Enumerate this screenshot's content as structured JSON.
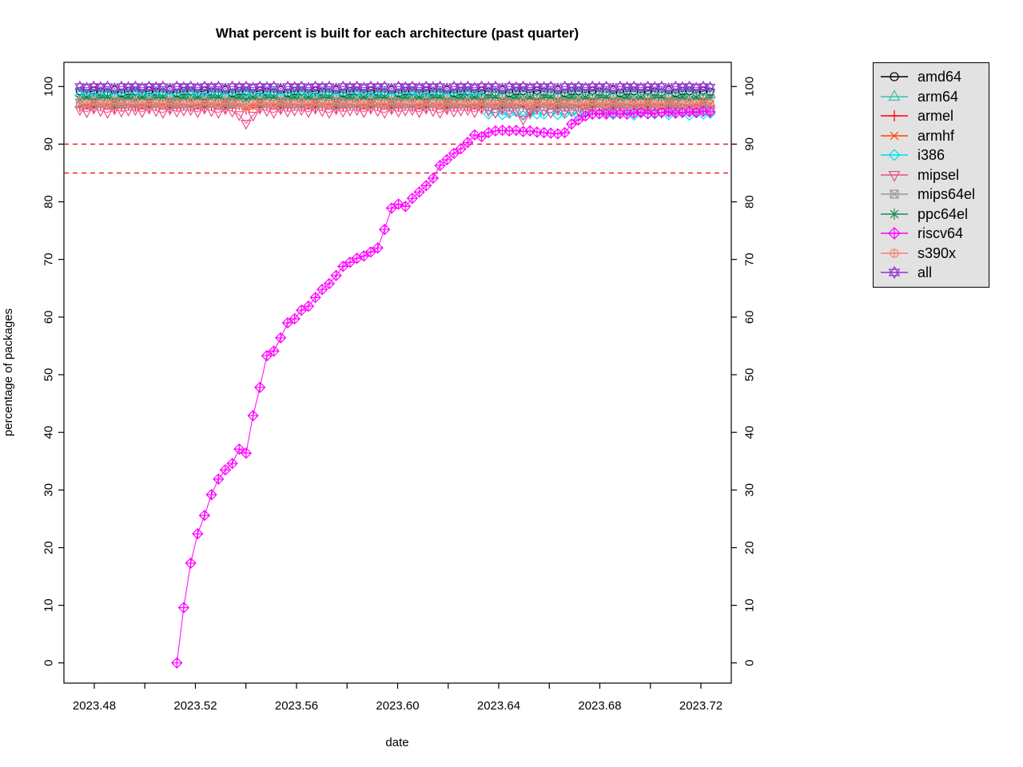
{
  "figure": {
    "background": "#FFFFFF"
  },
  "chart_data": {
    "type": "line",
    "title": "What percent is built for each architecture (past quarter)",
    "xlabel": "date",
    "ylabel": "percentage of packages",
    "xlim": [
      2023.468,
      2023.732
    ],
    "ylim": [
      -3.5,
      104.2
    ],
    "grid": false,
    "legend_position": "right-outside",
    "legend_bg": "#E2E2E2",
    "legend_border": "#000000",
    "axis_color": "#000000",
    "x_ticks": {
      "positions": [
        2023.48,
        2023.5,
        2023.52,
        2023.54,
        2023.56,
        2023.58,
        2023.6,
        2023.62,
        2023.64,
        2023.66,
        2023.68,
        2023.7,
        2023.72
      ],
      "labels": [
        "2023.48",
        "",
        "2023.52",
        "",
        "2023.56",
        "",
        "2023.60",
        "",
        "2023.64",
        "",
        "2023.68",
        "",
        "2023.72"
      ]
    },
    "y_ticks": {
      "positions": [
        0,
        10,
        20,
        30,
        40,
        50,
        60,
        70,
        80,
        90,
        100
      ],
      "labels": [
        "0",
        "10",
        "20",
        "30",
        "40",
        "50",
        "60",
        "70",
        "80",
        "90",
        "100"
      ],
      "mirrored_right": true
    },
    "hlines": [
      {
        "y": 90,
        "color": "#EE0000",
        "style": "dashed"
      },
      {
        "y": 85,
        "color": "#EE0000",
        "style": "dashed"
      }
    ],
    "x": {
      "start": 2023.4743,
      "step": 0.00274,
      "count": 92,
      "unit": "decimal year (daily samples)"
    },
    "series": [
      {
        "name": "amd64",
        "color": "#000000",
        "marker": "circle",
        "values": [
          99.2,
          98.9,
          99.3,
          99.1,
          99.0,
          99.4,
          98.9,
          99.2,
          99.2,
          98.9,
          99.3,
          99.1,
          99.0,
          99.4,
          98.9,
          99.2,
          99.2,
          98.9,
          99.3,
          99.1,
          99.0,
          99.4,
          98.9,
          99.2,
          99.2,
          98.9,
          99.3,
          99.1,
          99.0,
          99.4,
          98.9,
          99.2,
          99.2,
          98.9,
          99.3,
          99.1,
          99.0,
          99.4,
          98.9,
          99.2,
          99.2,
          98.9,
          99.3,
          99.1,
          99.0,
          99.4,
          98.9,
          99.2,
          99.2,
          98.9,
          99.3,
          99.1,
          99.0,
          99.4,
          98.9,
          99.2,
          99.2,
          98.9,
          99.3,
          99.1,
          99.0,
          99.4,
          98.9,
          99.2,
          99.2,
          98.9,
          99.3,
          99.1,
          99.0,
          99.4,
          98.9,
          99.2,
          99.2,
          98.9,
          99.3,
          99.1,
          99.0,
          99.4,
          98.9,
          99.2,
          99.2,
          98.9,
          99.3,
          99.1,
          99.0,
          99.4,
          98.9,
          99.2,
          99.2,
          98.9,
          99.3,
          99.1
        ]
      },
      {
        "name": "arm64",
        "color": "#3CC0B4",
        "marker": "triangle-up",
        "values": [
          98.9,
          98.6,
          98.4,
          98.8,
          99.0,
          98.5,
          98.7,
          98.9,
          98.9,
          98.6,
          98.4,
          98.8,
          99.0,
          98.5,
          98.7,
          98.9,
          98.9,
          98.6,
          98.4,
          98.8,
          99.0,
          98.5,
          98.7,
          98.9,
          98.9,
          98.6,
          98.4,
          98.8,
          99.0,
          98.5,
          98.7,
          98.9,
          98.9,
          98.6,
          98.4,
          98.8,
          99.0,
          98.5,
          98.7,
          98.9,
          98.9,
          98.6,
          98.4,
          98.8,
          99.0,
          98.5,
          98.7,
          98.9,
          98.9,
          98.6,
          98.4,
          98.8,
          99.0,
          98.5,
          98.7,
          98.9,
          98.9,
          98.6,
          98.4,
          98.8,
          99.0,
          98.5,
          98.7,
          98.9,
          98.9,
          98.6,
          98.4,
          98.8,
          99.0,
          98.5,
          98.7,
          98.9,
          98.9,
          98.6,
          98.4,
          98.8,
          99.0,
          98.5,
          98.7,
          98.9,
          98.9,
          98.6,
          98.4,
          98.8,
          99.0,
          98.5,
          98.7,
          98.9,
          98.9,
          98.6,
          98.4,
          98.8
        ]
      },
      {
        "name": "armel",
        "color": "#FF0000",
        "marker": "plus",
        "values": [
          96.5,
          96.8,
          96.4,
          96.7,
          96.9,
          96.3,
          96.6,
          96.8,
          96.5,
          96.8,
          96.4,
          96.7,
          96.9,
          96.3,
          96.6,
          96.8,
          96.5,
          96.8,
          96.4,
          96.7,
          96.9,
          96.3,
          96.6,
          96.8,
          96.0,
          96.8,
          96.4,
          96.7,
          96.9,
          96.3,
          96.6,
          96.8,
          96.5,
          96.8,
          96.4,
          96.7,
          96.9,
          96.3,
          96.6,
          96.8,
          96.5,
          96.8,
          96.4,
          96.7,
          96.9,
          96.3,
          96.6,
          96.8,
          96.5,
          96.8,
          96.4,
          96.7,
          96.9,
          96.3,
          96.6,
          96.8,
          96.5,
          96.8,
          96.4,
          96.7,
          96.9,
          96.3,
          96.6,
          96.8,
          96.5,
          95.2,
          96.4,
          96.7,
          96.9,
          96.3,
          96.6,
          96.8,
          96.5,
          96.8,
          96.4,
          96.7,
          96.9,
          96.3,
          96.6,
          96.8,
          96.5,
          96.8,
          96.4,
          96.7,
          96.9,
          96.3,
          96.6,
          96.8,
          96.5,
          96.8,
          96.4,
          96.7
        ]
      },
      {
        "name": "armhf",
        "color": "#FF4500",
        "marker": "cross",
        "values": [
          96.9,
          96.5,
          97.0,
          96.8,
          96.6,
          97.1,
          96.7,
          96.9,
          96.9,
          96.5,
          97.0,
          96.8,
          96.6,
          97.1,
          96.7,
          96.9,
          96.9,
          96.5,
          97.0,
          96.8,
          96.6,
          97.1,
          96.7,
          96.9,
          96.2,
          96.5,
          97.0,
          96.8,
          96.6,
          97.1,
          96.7,
          96.9,
          96.9,
          96.5,
          97.0,
          96.8,
          96.6,
          97.1,
          96.7,
          96.9,
          96.9,
          96.5,
          97.0,
          96.8,
          96.6,
          97.1,
          96.7,
          96.9,
          96.9,
          96.5,
          97.0,
          96.8,
          96.6,
          97.1,
          96.7,
          96.9,
          96.9,
          96.5,
          97.0,
          96.8,
          96.6,
          97.1,
          96.7,
          96.9,
          96.9,
          96.5,
          97.0,
          96.8,
          96.6,
          97.1,
          96.7,
          96.9,
          96.9,
          96.5,
          97.0,
          96.8,
          96.6,
          97.1,
          96.7,
          96.9,
          96.9,
          96.5,
          97.0,
          96.8,
          96.6,
          97.1,
          96.7,
          96.9,
          96.9,
          96.5,
          97.0,
          96.8
        ]
      },
      {
        "name": "i386",
        "color": "#00DDEE",
        "marker": "diamond",
        "values": [
          98.5,
          98.7,
          98.2,
          98.4,
          98.6,
          98.1,
          98.5,
          98.3,
          98.5,
          98.7,
          98.2,
          98.4,
          98.6,
          98.1,
          98.5,
          98.3,
          98.5,
          98.7,
          98.2,
          98.4,
          98.6,
          98.1,
          98.5,
          98.3,
          98.5,
          98.7,
          98.2,
          98.4,
          98.6,
          98.1,
          98.5,
          98.3,
          98.5,
          98.7,
          98.2,
          98.4,
          98.6,
          98.1,
          98.5,
          98.3,
          98.5,
          98.7,
          98.2,
          98.4,
          98.6,
          98.1,
          98.5,
          98.3,
          98.5,
          98.7,
          98.2,
          98.4,
          98.6,
          98.1,
          98.5,
          98.3,
          98.5,
          98.7,
          98.2,
          95.2,
          95.5,
          95.1,
          95.3,
          95.6,
          95.0,
          95.4,
          95.2,
          95.2,
          95.5,
          95.1,
          95.3,
          95.6,
          95.0,
          95.4,
          95.2,
          95.2,
          95.5,
          95.1,
          95.3,
          95.6,
          95.0,
          95.4,
          95.2,
          95.2,
          95.5,
          95.1,
          95.3,
          95.6,
          95.0,
          95.4,
          95.2,
          95.3
        ]
      },
      {
        "name": "mipsel",
        "color": "#EE4C8E",
        "marker": "triangle-down",
        "values": [
          96.0,
          95.6,
          96.2,
          95.8,
          95.5,
          96.1,
          95.7,
          95.9,
          96.0,
          95.6,
          96.2,
          95.8,
          95.5,
          96.1,
          95.7,
          95.9,
          96.0,
          95.6,
          96.2,
          95.8,
          95.5,
          96.1,
          95.7,
          95.1,
          93.6,
          95.0,
          96.2,
          95.8,
          95.5,
          96.1,
          95.7,
          95.9,
          96.0,
          95.6,
          96.2,
          95.8,
          95.5,
          96.1,
          95.7,
          95.9,
          96.0,
          95.6,
          96.2,
          95.8,
          95.5,
          96.1,
          95.7,
          95.9,
          96.0,
          95.6,
          96.2,
          95.8,
          95.5,
          96.1,
          95.7,
          95.9,
          96.0,
          95.6,
          96.2,
          95.8,
          95.5,
          96.1,
          95.7,
          95.9,
          94.3,
          95.6,
          96.2,
          95.8,
          95.5,
          96.1,
          95.7,
          95.9,
          96.0,
          95.6,
          96.2,
          95.8,
          95.5,
          96.1,
          95.7,
          95.9,
          96.0,
          95.6,
          96.2,
          95.8,
          95.5,
          96.1,
          95.7,
          95.9,
          96.0,
          95.6,
          96.2,
          95.8
        ]
      },
      {
        "name": "mips64el",
        "color": "#A09598",
        "marker": "square-cross",
        "values": [
          96.9,
          97.2,
          96.8,
          97.0,
          97.3,
          96.7,
          97.1,
          96.9,
          96.9,
          97.2,
          96.8,
          97.0,
          97.3,
          96.7,
          97.1,
          96.9,
          96.9,
          97.2,
          96.8,
          97.0,
          97.3,
          96.7,
          97.1,
          96.9,
          96.9,
          97.2,
          96.8,
          97.0,
          97.3,
          96.7,
          97.1,
          96.9,
          96.9,
          97.2,
          96.8,
          97.0,
          97.3,
          96.7,
          97.1,
          96.9,
          96.9,
          97.2,
          96.8,
          97.0,
          97.3,
          96.7,
          97.1,
          96.9,
          96.9,
          97.2,
          96.8,
          97.0,
          97.3,
          96.7,
          97.1,
          96.9,
          96.9,
          97.2,
          96.8,
          97.0,
          97.3,
          96.7,
          97.1,
          96.9,
          96.9,
          97.2,
          96.8,
          97.0,
          97.3,
          96.7,
          97.1,
          96.9,
          96.9,
          97.2,
          96.8,
          97.0,
          97.3,
          96.7,
          97.1,
          96.9,
          96.9,
          97.2,
          96.8,
          97.0,
          97.3,
          96.7,
          97.1,
          96.9,
          96.9,
          97.2,
          96.8,
          97.0
        ]
      },
      {
        "name": "ppc64el",
        "color": "#228B50",
        "marker": "asterisk",
        "values": [
          97.8,
          98.1,
          97.7,
          98.0,
          98.2,
          97.6,
          97.9,
          98.1,
          97.8,
          98.1,
          97.7,
          98.0,
          98.2,
          97.6,
          97.9,
          98.1,
          97.8,
          98.1,
          97.7,
          98.0,
          98.2,
          97.6,
          97.9,
          98.1,
          97.8,
          98.1,
          97.7,
          98.0,
          98.2,
          97.6,
          97.9,
          98.1,
          97.8,
          98.1,
          97.7,
          98.0,
          98.2,
          97.6,
          97.9,
          98.1,
          97.8,
          98.1,
          97.7,
          98.0,
          98.2,
          97.6,
          97.9,
          98.1,
          97.8,
          98.1,
          97.7,
          98.0,
          98.2,
          97.6,
          97.9,
          98.1,
          97.8,
          98.1,
          97.7,
          98.0,
          98.2,
          97.6,
          97.9,
          98.1,
          97.8,
          98.1,
          97.7,
          98.0,
          98.2,
          97.6,
          97.9,
          98.1,
          97.8,
          98.1,
          97.7,
          98.0,
          98.2,
          97.6,
          97.9,
          98.1,
          97.8,
          98.1,
          97.7,
          98.0,
          98.2,
          97.6,
          97.9,
          98.1,
          97.8,
          98.1,
          97.7,
          98.0
        ]
      },
      {
        "name": "riscv64",
        "color": "#FF00FF",
        "marker": "diamond-plus",
        "values": [
          null,
          null,
          null,
          null,
          null,
          null,
          null,
          null,
          null,
          null,
          null,
          null,
          null,
          null,
          0,
          9.6,
          17.3,
          22.4,
          25.6,
          29.2,
          31.9,
          33.5,
          34.6,
          37.1,
          36.4,
          42.9,
          47.8,
          53.3,
          54.1,
          56.4,
          59.0,
          59.7,
          61.2,
          61.9,
          63.4,
          64.8,
          65.8,
          67.2,
          68.8,
          69.5,
          70.2,
          70.6,
          71.3,
          72.0,
          75.2,
          78.9,
          79.6,
          79.2,
          80.6,
          81.7,
          82.8,
          84.1,
          86.3,
          87.3,
          88.4,
          89.2,
          90.3,
          91.6,
          91.3,
          92.0,
          92.3,
          92.4,
          92.3,
          92.4,
          92.2,
          92.3,
          92.1,
          92.0,
          91.9,
          91.8,
          92.0,
          93.5,
          94.2,
          94.9,
          95.2,
          95.3,
          95.2,
          95.4,
          95.3,
          95.2,
          95.4,
          95.5,
          95.3,
          95.4,
          95.5,
          95.6,
          95.4,
          95.5,
          95.6,
          95.5,
          95.7,
          95.6
        ]
      },
      {
        "name": "s390x",
        "color": "#FA8072",
        "marker": "circle-plus",
        "values": [
          97.4,
          97.1,
          97.5,
          97.2,
          97.0,
          97.6,
          97.3,
          97.1,
          97.4,
          97.1,
          97.5,
          97.2,
          97.0,
          97.6,
          97.3,
          97.1,
          97.4,
          97.1,
          97.5,
          97.2,
          97.0,
          97.6,
          97.3,
          97.1,
          96.5,
          97.1,
          97.5,
          97.2,
          97.0,
          97.6,
          97.3,
          97.1,
          97.4,
          97.1,
          97.5,
          97.2,
          97.0,
          97.6,
          97.3,
          97.1,
          97.4,
          97.1,
          97.5,
          97.2,
          97.0,
          97.6,
          97.3,
          97.1,
          97.4,
          97.1,
          97.5,
          97.2,
          97.0,
          97.6,
          97.3,
          97.1,
          97.4,
          97.1,
          97.5,
          97.2,
          97.0,
          97.6,
          97.3,
          97.1,
          97.4,
          97.1,
          97.5,
          97.2,
          97.0,
          97.6,
          97.3,
          97.1,
          97.4,
          97.1,
          97.5,
          97.2,
          97.0,
          97.6,
          97.3,
          97.1,
          97.4,
          97.1,
          97.5,
          97.2,
          97.0,
          97.6,
          97.3,
          97.1,
          97.4,
          97.1,
          97.5,
          97.2
        ]
      },
      {
        "name": "all",
        "color": "#9234D0",
        "marker": "star",
        "values": [
          100,
          99.8,
          100,
          99.9,
          100,
          99.7,
          100,
          99.9,
          100,
          99.8,
          100,
          99.9,
          100,
          99.7,
          100,
          99.9,
          100,
          99.8,
          100,
          99.9,
          100,
          99.7,
          100,
          99.9,
          100,
          99.8,
          100,
          99.9,
          100,
          99.7,
          100,
          99.9,
          100,
          99.8,
          100,
          99.9,
          100,
          99.7,
          100,
          99.9,
          100,
          99.8,
          100,
          99.9,
          100,
          99.7,
          100,
          99.9,
          100,
          99.8,
          100,
          99.9,
          100,
          99.7,
          100,
          99.9,
          100,
          99.8,
          100,
          99.9,
          100,
          99.7,
          100,
          99.9,
          100,
          99.8,
          100,
          99.9,
          100,
          99.7,
          100,
          99.9,
          100,
          99.8,
          100,
          99.9,
          100,
          99.7,
          100,
          99.9,
          100,
          99.8,
          100,
          99.9,
          100,
          99.7,
          100,
          99.9,
          100,
          99.8,
          100,
          99.9
        ]
      }
    ]
  }
}
